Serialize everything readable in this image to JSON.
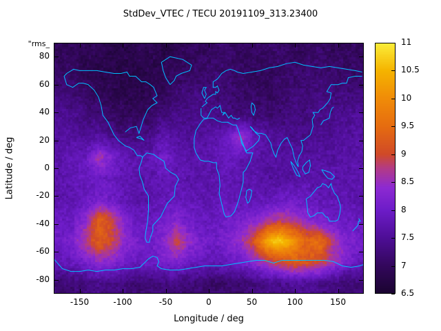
{
  "chart_data": {
    "type": "heatmap",
    "title": "StdDev_VTEC / TECU 20191109_313.23400",
    "xlabel": "Longitude / deg",
    "ylabel": "Latitude / deg",
    "corner_label": "\"rms_",
    "xlim": [
      -180,
      180
    ],
    "ylim": [
      -90,
      90
    ],
    "x_ticks": {
      "values": [
        -150,
        -100,
        -50,
        0,
        50,
        100,
        150
      ],
      "labels": [
        "-150",
        "-100",
        "-50",
        "0",
        "50",
        "100",
        "150"
      ]
    },
    "y_ticks": {
      "values": [
        80,
        60,
        40,
        20,
        0,
        -20,
        -40,
        -60,
        -80
      ],
      "labels": [
        "80",
        "60",
        "40",
        "20",
        "0",
        "-20",
        "-40",
        "-60",
        "-80"
      ]
    },
    "colorbar": {
      "min": 6.5,
      "max": 11,
      "tick_values": [
        6.5,
        7,
        7.5,
        8,
        8.5,
        9,
        9.5,
        10,
        10.5,
        11
      ],
      "tick_labels": [
        "6.5",
        "7",
        "7.5",
        "8",
        "8.5",
        "9",
        "9.5",
        "10",
        "10.5",
        "11"
      ],
      "colormap": [
        [
          6.5,
          "#1a0430"
        ],
        [
          7.0,
          "#33075c"
        ],
        [
          7.5,
          "#4e0e96"
        ],
        [
          8.0,
          "#6d1cc8"
        ],
        [
          8.4,
          "#8d2ad2"
        ],
        [
          8.75,
          "#b33b86"
        ],
        [
          9.0,
          "#d04a28"
        ],
        [
          9.5,
          "#e66c10"
        ],
        [
          10.0,
          "#f08c08"
        ],
        [
          10.5,
          "#f5b400"
        ],
        [
          11.0,
          "#fbee3a"
        ]
      ]
    },
    "grid": {
      "lon_start": -172.5,
      "lon_step": 15,
      "lat_start": 82.5,
      "lat_step": -15,
      "values": [
        [
          7.0,
          7.0,
          6.9,
          6.9,
          6.8,
          6.8,
          6.9,
          6.9,
          6.8,
          6.9,
          7.0,
          7.0,
          7.1,
          7.1,
          7.0,
          7.0,
          7.1,
          7.1,
          7.0,
          7.0,
          7.1,
          7.0,
          7.0,
          7.0
        ],
        [
          7.1,
          7.0,
          6.9,
          6.8,
          6.8,
          6.8,
          6.8,
          6.8,
          6.9,
          7.0,
          7.1,
          7.1,
          7.2,
          7.1,
          7.1,
          7.0,
          7.0,
          7.1,
          7.1,
          7.2,
          7.2,
          7.2,
          7.1,
          7.1
        ],
        [
          7.3,
          7.2,
          7.1,
          7.0,
          6.9,
          6.8,
          6.8,
          6.9,
          7.0,
          7.2,
          7.3,
          7.3,
          7.2,
          7.2,
          7.1,
          7.1,
          7.0,
          7.1,
          7.2,
          7.2,
          7.3,
          7.3,
          7.3,
          7.3
        ],
        [
          7.5,
          7.4,
          7.3,
          7.2,
          7.1,
          7.0,
          7.0,
          7.1,
          7.3,
          7.4,
          7.4,
          7.4,
          7.4,
          7.3,
          7.3,
          7.2,
          7.2,
          7.2,
          7.3,
          7.3,
          7.4,
          7.4,
          7.5,
          7.5
        ],
        [
          7.6,
          7.6,
          7.5,
          7.6,
          7.4,
          7.3,
          7.3,
          7.4,
          7.7,
          7.6,
          7.5,
          7.6,
          7.7,
          8.0,
          8.6,
          7.9,
          7.6,
          7.5,
          7.4,
          7.4,
          7.5,
          7.5,
          7.6,
          7.6
        ],
        [
          7.7,
          7.8,
          7.9,
          8.6,
          8.2,
          7.8,
          7.7,
          7.8,
          8.1,
          7.8,
          7.7,
          7.7,
          7.8,
          7.9,
          7.8,
          7.7,
          7.6,
          7.6,
          7.6,
          7.6,
          7.6,
          7.6,
          7.7,
          7.7
        ],
        [
          7.7,
          7.8,
          7.9,
          8.0,
          7.9,
          7.8,
          7.7,
          7.7,
          7.8,
          7.8,
          7.7,
          7.7,
          7.7,
          7.8,
          7.7,
          7.7,
          7.6,
          7.6,
          7.6,
          7.7,
          7.7,
          7.7,
          7.7,
          7.7
        ],
        [
          7.7,
          7.8,
          7.9,
          8.1,
          8.0,
          7.8,
          7.7,
          7.7,
          7.8,
          7.9,
          7.8,
          7.8,
          7.8,
          7.9,
          7.8,
          7.8,
          7.8,
          7.9,
          8.0,
          7.9,
          7.8,
          7.8,
          7.8,
          7.7
        ],
        [
          7.9,
          8.0,
          8.4,
          9.4,
          9.0,
          8.2,
          7.9,
          7.9,
          8.0,
          8.3,
          8.0,
          7.9,
          7.9,
          8.0,
          8.1,
          8.3,
          8.6,
          8.8,
          8.7,
          8.4,
          8.2,
          8.0,
          7.9,
          7.9
        ],
        [
          8.0,
          8.2,
          8.8,
          9.3,
          9.0,
          8.4,
          8.1,
          8.0,
          8.3,
          9.0,
          8.4,
          8.1,
          8.0,
          8.2,
          8.5,
          9.2,
          10.4,
          10.8,
          10.2,
          9.4,
          9.6,
          8.8,
          8.3,
          8.1
        ],
        [
          7.8,
          7.9,
          8.1,
          8.4,
          8.3,
          8.0,
          7.9,
          8.0,
          8.1,
          8.2,
          8.0,
          7.9,
          7.8,
          7.9,
          8.0,
          8.3,
          8.7,
          9.0,
          9.3,
          9.2,
          9.0,
          8.6,
          8.2,
          7.9
        ],
        [
          7.2,
          7.2,
          7.3,
          7.4,
          7.4,
          7.3,
          7.2,
          7.2,
          7.3,
          7.3,
          7.2,
          7.2,
          7.1,
          7.2,
          7.2,
          7.3,
          7.4,
          7.4,
          7.5,
          7.5,
          7.4,
          7.3,
          7.2,
          7.2
        ]
      ]
    },
    "coastline_color": "#00bfff",
    "coastlines": [
      [
        -168,
        66,
        -165,
        60,
        -158,
        58,
        -151,
        61,
        -146,
        61,
        -140,
        60,
        -133,
        56,
        -128,
        51,
        -125,
        45,
        -123,
        38,
        -117,
        33,
        -110,
        24,
        -105,
        20,
        -97,
        16,
        -92,
        15,
        -87,
        13,
        -83,
        9,
        -79,
        9,
        -77,
        8
      ],
      [
        -97,
        26,
        -91,
        29,
        -84,
        30,
        -81,
        25,
        -80,
        27,
        -76,
        35,
        -71,
        42,
        -66,
        45,
        -60,
        47,
        -65,
        50,
        -60,
        52,
        -64,
        58,
        -68,
        60,
        -73,
        62,
        -78,
        62,
        -85,
        66,
        -92,
        66,
        -95,
        69,
        -102,
        68,
        -110,
        68,
        -120,
        69,
        -130,
        70,
        -140,
        70,
        -150,
        70,
        -157,
        71,
        -165,
        68,
        -168,
        66
      ],
      [
        -77,
        8,
        -72,
        11,
        -64,
        10,
        -60,
        8,
        -52,
        5,
        -50,
        0,
        -44,
        -3,
        -38,
        -5,
        -35,
        -8,
        -39,
        -13,
        -40,
        -20,
        -48,
        -25,
        -52,
        -30,
        -56,
        -35,
        -62,
        -39,
        -65,
        -41,
        -65,
        -45,
        -68,
        -50,
        -69,
        -53,
        -72,
        -53,
        -74,
        -50,
        -73,
        -45,
        -71,
        -38,
        -70,
        -30,
        -70,
        -20,
        -75,
        -15,
        -77,
        -10,
        -80,
        -5,
        -81,
        0,
        -78,
        5,
        -77,
        8
      ],
      [
        -45,
        60,
        -40,
        63,
        -38,
        66,
        -32,
        68,
        -22,
        70,
        -20,
        74,
        -30,
        78,
        -45,
        80,
        -55,
        76,
        -53,
        70,
        -50,
        65,
        -45,
        60
      ],
      [
        -5,
        50,
        -3,
        53,
        -5,
        56,
        -3,
        58,
        -6,
        58,
        -8,
        54,
        -5,
        50
      ],
      [
        -6,
        35,
        -10,
        32,
        -15,
        27,
        -17,
        21,
        -17,
        15,
        -15,
        11,
        -10,
        6,
        -5,
        5,
        0,
        5,
        5,
        4,
        9,
        4,
        9,
        0,
        12,
        -5,
        13,
        -12,
        12,
        -18,
        14,
        -23,
        16,
        -28,
        18,
        -33,
        20,
        -35,
        26,
        -34,
        30,
        -31,
        33,
        -26,
        35,
        -22,
        38,
        -15,
        40,
        -10,
        40,
        -3,
        43,
        -1,
        48,
        5,
        51,
        11,
        44,
        11,
        43,
        13,
        38,
        18,
        37,
        22,
        34,
        28,
        32,
        31,
        28,
        31,
        22,
        33,
        15,
        33,
        10,
        34,
        5,
        36,
        0,
        36,
        -6,
        35
      ],
      [
        -9,
        43,
        -9,
        38,
        -6,
        36,
        -2,
        36,
        3,
        42,
        8,
        44,
        10,
        43,
        13,
        45,
        15,
        40,
        18,
        40,
        16,
        38,
        19,
        40,
        20,
        39,
        23,
        36,
        26,
        38,
        28,
        36,
        30,
        36,
        33,
        35,
        36,
        36
      ],
      [
        -8,
        44,
        -2,
        47,
        -4,
        48,
        -2,
        50,
        0,
        51,
        5,
        53,
        8,
        53,
        8,
        55,
        10,
        54,
        12,
        56,
        10,
        59,
        8,
        58,
        5,
        58,
        5,
        62,
        10,
        64,
        15,
        68,
        20,
        70,
        25,
        71,
        30,
        70,
        33,
        69,
        40,
        68,
        50,
        69,
        60,
        70,
        70,
        72,
        80,
        73,
        90,
        75,
        100,
        76,
        110,
        74,
        120,
        73,
        130,
        72,
        140,
        73,
        150,
        72,
        160,
        71,
        170,
        70,
        178,
        69
      ],
      [
        178,
        66,
        170,
        66,
        162,
        65,
        160,
        61,
        155,
        61,
        150,
        60,
        145,
        60,
        142,
        60,
        140,
        58,
        137,
        55,
        142,
        54,
        141,
        50,
        138,
        47,
        135,
        45,
        132,
        43,
        129,
        42,
        127,
        40,
        124,
        40,
        121,
        40,
        123,
        38,
        120,
        35,
        121,
        30,
        118,
        24,
        114,
        22,
        110,
        20,
        107,
        20,
        109,
        16,
        108,
        12,
        105,
        9,
        103,
        5,
        104,
        1,
        102,
        3,
        99,
        8,
        97,
        14,
        94,
        18,
        91,
        22,
        88,
        21,
        84,
        18,
        80,
        13,
        78,
        8,
        76,
        10,
        73,
        15,
        72,
        18,
        70,
        20,
        66,
        24,
        61,
        25,
        57,
        25,
        52,
        27,
        48,
        30
      ],
      [
        34,
        28,
        36,
        24,
        40,
        17,
        43,
        12,
        45,
        13,
        52,
        16,
        58,
        20,
        59,
        23,
        55,
        25,
        50,
        29,
        48,
        30
      ],
      [
        130,
        31,
        133,
        34,
        137,
        35,
        140,
        36,
        141,
        40,
        143,
        43,
        145,
        44
      ],
      [
        109,
        1,
        113,
        4,
        117,
        6,
        118,
        2,
        116,
        -3,
        112,
        -4,
        109,
        -1,
        109,
        1
      ],
      [
        95,
        5,
        99,
        2,
        103,
        -2,
        106,
        -6,
        102,
        -5,
        98,
        0,
        95,
        5
      ],
      [
        131,
        -1,
        136,
        -2,
        141,
        -3,
        146,
        -6,
        143,
        -8,
        138,
        -7,
        134,
        -4,
        131,
        -1
      ],
      [
        113,
        -22,
        114,
        -26,
        115,
        -32,
        118,
        -35,
        122,
        -34,
        126,
        -32,
        132,
        -32,
        136,
        -35,
        138,
        -35,
        140,
        -38,
        144,
        -38,
        147,
        -38,
        150,
        -37,
        152,
        -33,
        153,
        -28,
        152,
        -25,
        149,
        -20,
        146,
        -18,
        143,
        -14,
        142,
        -11,
        139,
        -14,
        136,
        -12,
        132,
        -11,
        130,
        -13,
        126,
        -14,
        122,
        -17,
        118,
        -20,
        113,
        -22
      ],
      [
        167,
        -45,
        170,
        -43,
        173,
        -41,
        174,
        -38,
        176,
        -38,
        174,
        -36
      ],
      [
        44,
        -16,
        47,
        -15,
        50,
        -16,
        49,
        -20,
        47,
        -24,
        45,
        -25,
        43,
        -21,
        44,
        -16
      ],
      [
        -180,
        -65,
        -170,
        -72,
        -160,
        -74,
        -150,
        -74,
        -140,
        -73,
        -130,
        -74,
        -120,
        -73,
        -110,
        -73,
        -100,
        -72,
        -90,
        -72,
        -80,
        -71,
        -75,
        -68,
        -70,
        -65,
        -65,
        -63,
        -60,
        -64,
        -58,
        -67,
        -60,
        -70,
        -55,
        -72,
        -45,
        -73,
        -35,
        -73,
        -25,
        -72,
        -15,
        -71,
        -5,
        -70,
        5,
        -70,
        15,
        -70,
        25,
        -69,
        35,
        -68,
        45,
        -67,
        55,
        -66,
        65,
        -66,
        75,
        -68,
        85,
        -66,
        95,
        -66,
        105,
        -66,
        115,
        -66,
        125,
        -66,
        135,
        -66,
        145,
        -67,
        155,
        -70,
        165,
        -71,
        175,
        -70,
        180,
        -69
      ],
      [
        -84,
        22,
        -80,
        23,
        -75,
        20,
        -78,
        21,
        -84,
        22
      ],
      [
        50,
        47,
        53,
        45,
        54,
        42,
        52,
        38,
        50,
        40,
        49,
        44,
        50,
        47
      ]
    ]
  }
}
